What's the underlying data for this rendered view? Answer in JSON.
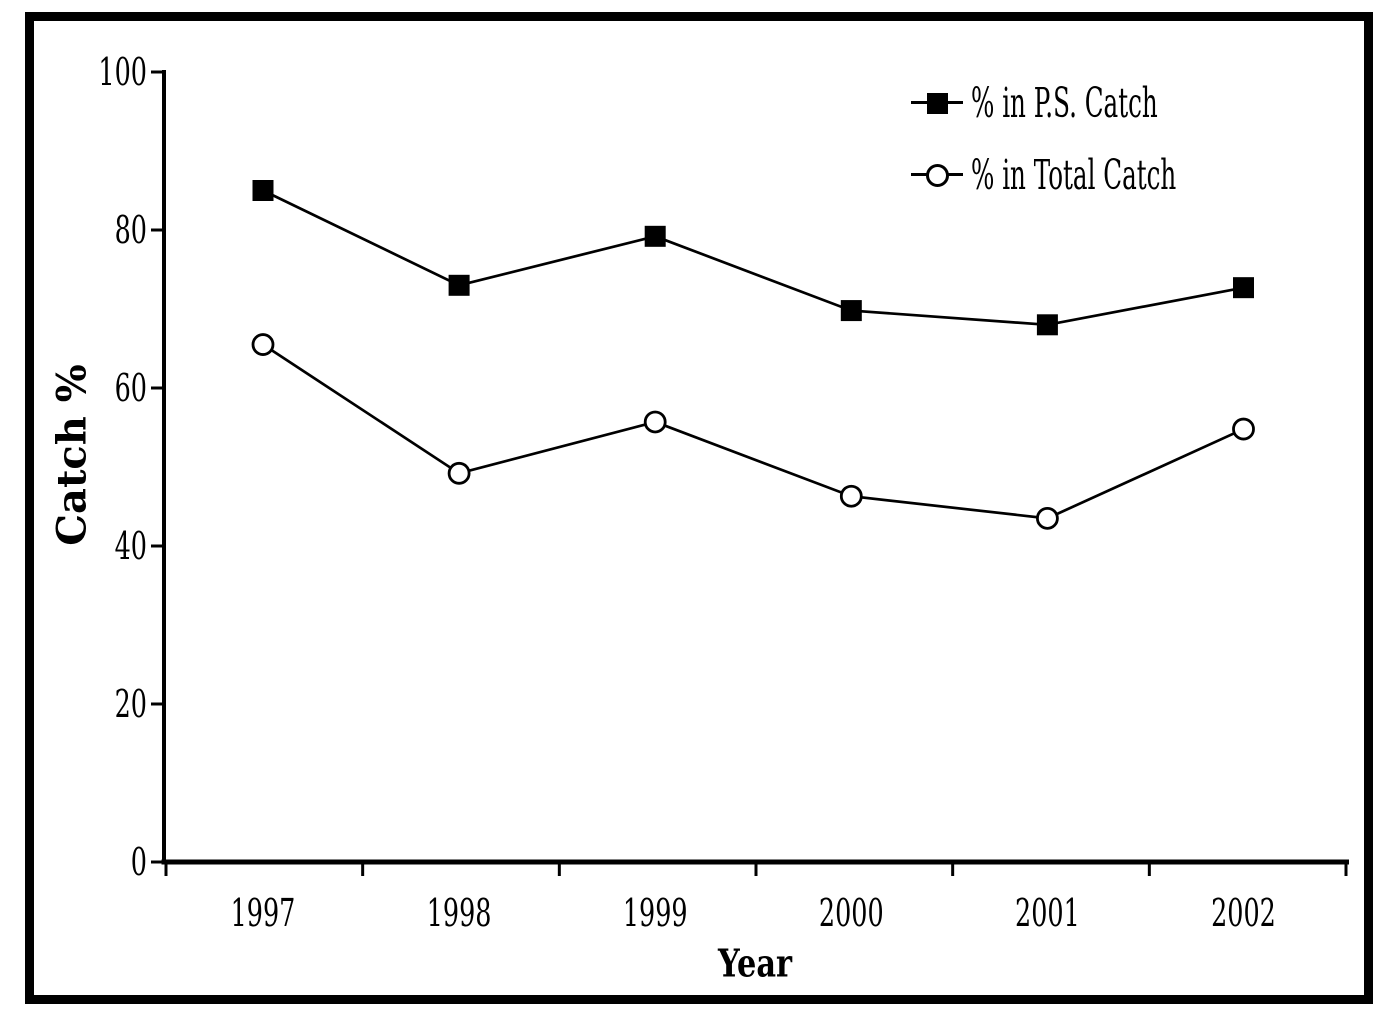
{
  "chart_data": {
    "type": "line",
    "title": "",
    "xlabel": "Year",
    "ylabel": "Catch %",
    "ylim": [
      0,
      100
    ],
    "yticks": [
      0,
      20,
      40,
      60,
      80,
      100
    ],
    "categories": [
      "1997",
      "1998",
      "1999",
      "2000",
      "2001",
      "2002"
    ],
    "series": [
      {
        "name": "% in P.S. Catch",
        "marker": "filled-square",
        "color": "#000000",
        "values": [
          85.0,
          73.0,
          79.2,
          69.8,
          68.0,
          72.7
        ]
      },
      {
        "name": "% in Total Catch",
        "marker": "open-circle",
        "color": "#000000",
        "values": [
          65.5,
          49.2,
          55.7,
          46.3,
          43.5,
          54.8
        ]
      }
    ],
    "legend_position": "top-right",
    "grid": false,
    "axis_color": "#000000",
    "background_color": "#ffffff"
  }
}
